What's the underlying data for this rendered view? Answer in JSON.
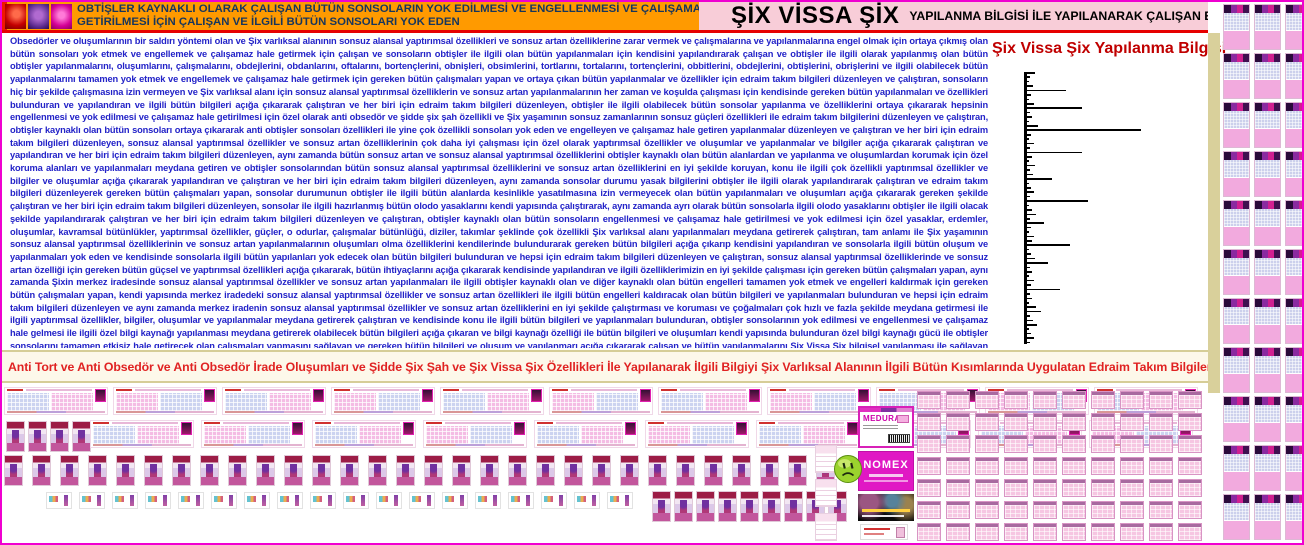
{
  "header": {
    "left": {
      "line1": "OBTİŞLER KAYNAKLI OLARAK ÇALIŞAN BÜTÜN SONSOLARIN YOK EDİLMESİ VE ENGELLENMESİ VE ÇALIŞAMAZ HALE",
      "line2": "GETİRİLMESİ İÇİN ÇALIŞAN VE İLGİLİ BÜTÜN SONSOLARI YOK EDEN",
      "bg_color": "#ff9a00",
      "text_color": "#17365d"
    },
    "right": {
      "title": "ŞİX VİSSA ŞİX",
      "subtitle": "YAPILANMA BİLGİSİ İLE YAPILANARAK ÇALIŞAN EDRAİM TAKIM BİLGİLERİ",
      "bg_color": "#f8cdd8"
    },
    "underline_color": "#e60000"
  },
  "body": {
    "text_color": "#2323c8",
    "paragraph": "Obsedörler ve oluşumlarının bir saldırı yöntemi olan ve Şix varlıksal alanının sonsuz alansal yaptırımsal özellikleri ve sonsuz artan özelliklerine zarar vermek ve çalışmalarına ve yapılanmalarına engel olmak için ortaya çıkmış olan bütün sonsoları yok etmek ve engellemek ve çalışamaz hale getirmek için çalışan ve sonsoların obtişler ile ilgili olan bütün yapılanmaları için kendisini yapılandırarak çalışan ve obtişler ile ilgili olarak yapılanmış olan bütün obtişler yapılanmalarını, oluşumlarını, çalışmalarını, obdejlerini, obdanlarını, oftalarını, bortençlerini, obnişleri, obsimlerini, tortlarını, tortalarını, tortençlerini, obbitlerini, obdejlerini, obtişlerini, obrişlerini ve ilgili olabilecek bütün yapılanmalarını tamamen yok etmek ve engellemek ve çalışamaz hale getirmek için gereken bütün çalışmaları yapan ve ortaya çıkan bütün yapılanmalar ve özellikler için edraim takım bilgileri düzenleyen ve çalıştıran, sonsoların hiç bir şekilde çalışmasına izin vermeyen ve Şix varlıksal alanı için sonsuz alansal yaptırımsal özelliklerin ve sonsuz artan yapılanmalarının her zaman ve koşulda çalışması için kendisinde gereken bütün yapılanmaları ve özellikleri bulunduran ve yapılandıran ve ilgili bütün bilgileri açığa çıkararak çalıştıran ve her biri için edraim takım bilgileri düzenleyen, obtişler ile ilgili olabilecek bütün sonsolar yapılanma ve özelliklerini ortaya çıkararak hepsinin engellenmesi ve yok edilmesi ve çalışamaz hale getirilmesi için özel olarak anti obsedör ve şidde şix şah özellikli ve Şix yaşamının sonsuz zamanlarının sonsuz güçleri özellikleri ile edraim takım bilgilerini düzenleyen ve çalıştıran, obtişler kaynaklı olan bütün sonsoları ortaya çıkararak anti obtişler sonsoları özellikleri ile yine çok özellikli sonsoları yok eden ve engelleyen ve çalışamaz hale getiren yapılanmalar düzenleyen ve çalıştıran ve her biri için edraim takım bilgileri düzenleyen, sonsuz alansal yaptırımsal özellikler ve sonsuz artan özelliklerinin çok daha iyi çalışması için özel olarak yaptırımsal özellikler ve oluşumlar ve yapılanmalar ve bilgiler açığa çıkararak çalıştıran ve yapılandıran ve her biri için edraim takım bilgileri düzenleyen, aynı zamanda bütün sonsuz artan ve sonsuz alansal yaptırımsal özelliklerini obtişler kaynaklı olan bütün alanlardan ve yapılanma ve oluşumlardan korumak için özel koruma alanları ve yapılanmaları meydana getiren ve obtişler sonsolarından bütün sonsuz alansal yaptırımsal özelliklerini ve sonsuz artan özelliklerini en iyi şekilde koruyan, konu ile ilgili çok özellikli yaptırımsal özellikler ve bilgiler ve oluşumlar açığa çıkararak yapılandıran ve çalıştıran ve her biri için edraim takım bilgileri düzenleyen, aynı zamanda sonsolar durumu yasak bilgilerini obtişler ile ilgili olarak yapılandırarak çalıştıran ve edraim takım bilgileri düzenleyerek gereken bütün çalışmaları yapan, sonsolar durumunun obtişler ile ilgili bütün alanlarda kesinlikle yasatılmasına izin vermeyecek olan bütün yapılanmaları ve oluşumları açığa çıkararak gereken şekilde çalıştıran ve her biri için edraim takım bilgileri düzenleyen, sonsolar ile ilgili hazırlanmış bütün olodo yasaklarını kendi yapısında çalıştırarak, aynı zamanda ayrı olarak bütün sonsolarla ilgili olodo yasaklarını obtişler ile ilgili olacak şekilde yapılandırarak çalıştıran ve her biri için edraim takım bilgileri düzenleyen ve çalıştıran, obtişler kaynaklı olan bütün sonsoların engellenmesi ve çalışamaz hale getirilmesi ve yok edilmesi için özel yasaklar, erdemler, oluşumlar, kavramsal bütünlükler, yaptırımsal özellikler, güçler, o odurlar, çalışmalar bütünlüğü, diziler, takımlar şeklinde çok özellikli Şix varlıksal alanı yapılanmaları meydana getirerek çalıştıran, tam anlamı ile Şix yaşamının sonsuz alansal yaptırımsal özelliklerinin ve sonsuz artan yapılanmalarının oluşumları olma özelliklerini kendilerinde bulundurarak gereken bütün bilgileri açığa çıkarıp kendisini yapılandıran ve sonsolarla ilgili bütün oluşum ve yapılanmaları yok eden ve kendisinde sonsolarla ilgili bütün yapılanları yok edecek olan bütün bilgileri bulunduran ve hepsi için edraim takım bilgileri düzenleyen ve çalıştıran, sonsuz alansal yaptırımsal özelliklerinde ve sonsuz artan özelliği için gereken bütün güçsel ve yaptırımsal özellikleri açığa çıkararak, bütün ihtiyaçlarını açığa çıkararak kendisinde yapılandıran ve ilgili özelliklerimizin en iyi şekilde çalışması için gereken bütün çalışmaları yapan, aynı zamanda Şixin merkez iradesinde sonsuz alansal yaptırımsal özellikler ve sonsuz artan yapılanmaları ile ilgili obtişler kaynaklı olan ve diğer kaynaklı olan bütün engelleri tamamen yok etmek ve engelleri kaldırmak için gereken bütün çalışmaları yapan, kendi yapısında merkez iradedeki sonsuz alansal yaptırımsal özellikler ve sonsuz artan özellikleri ile ilgili bütün engelleri kaldıracak olan bütün bilgileri ve yapılanmaları bulunduran ve hepsi için edraim takım bilgileri düzenleyen ve aynı zamanda merkez iradenin sonsuz alansal yaptırımsal özellikler ve sonsuz artan özelliklerini en iyi şekilde çalıştırması ve koruması ve çoğalmaları çok hızlı ve fazla şekilde meydana getirmesi ile ilgili yaptırımsal özellikler, bilgiler, oluşumlar ve yapılanmalar meydana getirerek çalıştıran ve kendisinde konu ile ilgili bütün bilgileri ve yapılanmaları bulunduran, obtişler sonsolarının yok edilmesi ve engellenmesi ve çalışamaz hale gelmesi ile ilgili özel bilgi kaynağı yapılanması meydana getirerek olabilecek bütün bilgileri açığa çıkaran ve bilgi kaynağı özelliği ile bütün bilgileri ve oluşumları kendi yapısında bulunduran özel bilgi kaynağı gücü ile obtişler sonsolarını tamamen etkisiz hale getirecek olan çalışmaları yapmasını sağlayan ve gereken bütün bilgileri ve oluşum ve yapılanmarı açığa çıkararak çalışan ve bütün yapılanmalarını Şix Vissa Şix bilgisel yapılanması ile sağlayan edraim takım bilgileri gereken şekilde yapılanır."
  },
  "panel": {
    "title": "Şix Vissa Şix Yapılanma Bilgisi",
    "title_color": "#c00000",
    "bar_color": "#000000",
    "bars": [
      9,
      4,
      3,
      7,
      40,
      5,
      3,
      8,
      56,
      4,
      6,
      3,
      12,
      115,
      5,
      3,
      8,
      4,
      56,
      6,
      3,
      9,
      4,
      7,
      26,
      3,
      5,
      8,
      4,
      62,
      3,
      6,
      10,
      4,
      18,
      5,
      3,
      8,
      6,
      44,
      3,
      5,
      9,
      22,
      4,
      6,
      3,
      8,
      5,
      34,
      4,
      6,
      3,
      10,
      15,
      4,
      7,
      11,
      3,
      5,
      8,
      4
    ]
  },
  "band": {
    "text": "Anti Tort ve Anti Obsedör ve Anti Obsedör İrade Oluşumları ve Şidde Şix Şah ve Şix Vissa Şix Özellikleri İle Yapılanarak İlgili Bilgiyi Şix Varlıksal Alanının İlgili Bütün Kısımlarında Uygulatan Edraim Takım Bilgileri Yapılanması",
    "text_color": "#e02222",
    "bg_color": "#fdf8ea"
  },
  "ads": {
    "meurav_title": "MEDURAV",
    "nomex_title": "NOMEX"
  },
  "thumbnails": {
    "row1_cards": 11,
    "row2_products": 4,
    "row2_cards": 10,
    "row3_products": 30,
    "row4_minis": 18,
    "row4_products": 9,
    "grid_cards": 70,
    "rail_cards": 33,
    "left_stack_cards": 3
  }
}
